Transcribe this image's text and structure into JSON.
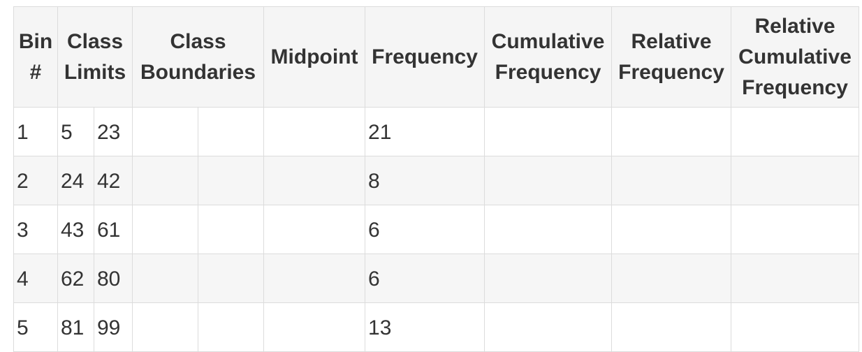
{
  "table": {
    "headers": {
      "bin": "Bin #",
      "class_limits": "Class Limits",
      "class_boundaries": "Class Boundaries",
      "midpoint": "Midpoint",
      "frequency": "Frequency",
      "cumulative_frequency": "Cumulative Frequency",
      "relative_frequency": "Relative Frequency",
      "relative_cumulative_frequency": "Relative Cumulative Frequency"
    },
    "rows": [
      {
        "bin": "1",
        "lower_limit": "5",
        "upper_limit": "23",
        "lower_boundary": "",
        "upper_boundary": "",
        "midpoint": "",
        "frequency": "21",
        "cumulative_frequency": "",
        "relative_frequency": "",
        "relative_cumulative_frequency": ""
      },
      {
        "bin": "2",
        "lower_limit": "24",
        "upper_limit": "42",
        "lower_boundary": "",
        "upper_boundary": "",
        "midpoint": "",
        "frequency": "8",
        "cumulative_frequency": "",
        "relative_frequency": "",
        "relative_cumulative_frequency": ""
      },
      {
        "bin": "3",
        "lower_limit": "43",
        "upper_limit": "61",
        "lower_boundary": "",
        "upper_boundary": "",
        "midpoint": "",
        "frequency": "6",
        "cumulative_frequency": "",
        "relative_frequency": "",
        "relative_cumulative_frequency": ""
      },
      {
        "bin": "4",
        "lower_limit": "62",
        "upper_limit": "80",
        "lower_boundary": "",
        "upper_boundary": "",
        "midpoint": "",
        "frequency": "6",
        "cumulative_frequency": "",
        "relative_frequency": "",
        "relative_cumulative_frequency": ""
      },
      {
        "bin": "5",
        "lower_limit": "81",
        "upper_limit": "99",
        "lower_boundary": "",
        "upper_boundary": "",
        "midpoint": "",
        "frequency": "13",
        "cumulative_frequency": "",
        "relative_frequency": "",
        "relative_cumulative_frequency": ""
      }
    ]
  }
}
